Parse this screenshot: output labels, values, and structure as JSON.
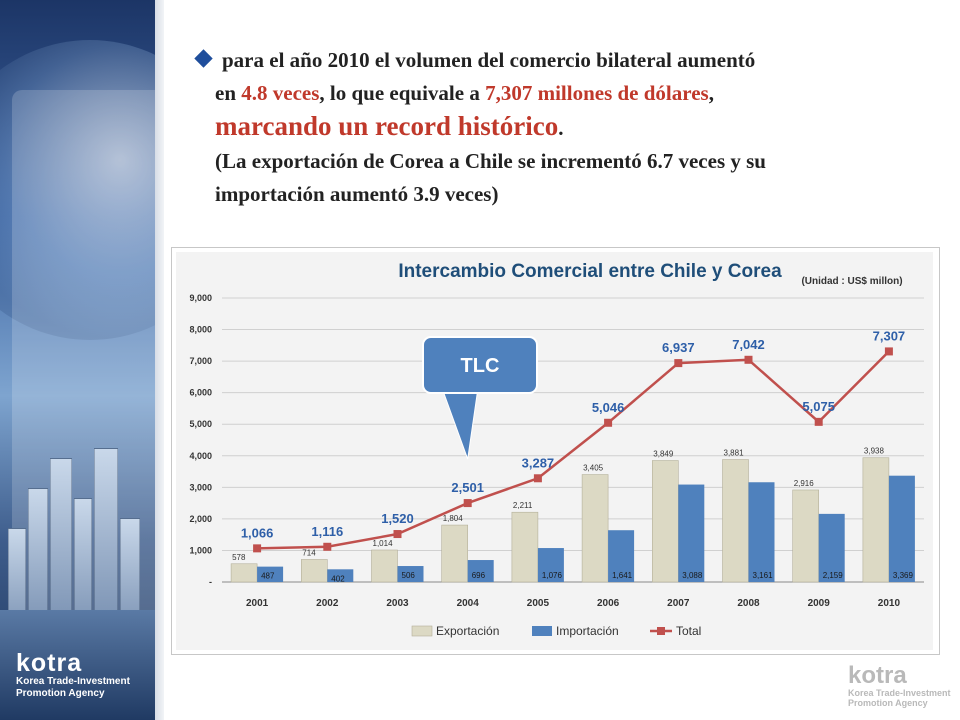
{
  "headline": {
    "line1": "para el año 2010 el volumen del comercio bilateral aumentó",
    "line2_pre": "en ",
    "line2_times": "4.8 veces",
    "line2_mid": ", lo que equivale a ",
    "line2_amount": "7,307 millones de dólares",
    "line2_post": ",",
    "line3": "marcando un record histórico",
    "line3_post": ".",
    "line4": "(La exportación de Corea a Chile se incrementó 6.7 veces y su",
    "line5": "importación  aumentó 3.9 veces)"
  },
  "logo": {
    "word": "kotra",
    "sub_line1": "Korea Trade-Investment",
    "sub_line2": "Promotion Agency"
  },
  "watermark": {
    "word": "kotra",
    "sub_line1": "Korea Trade-Investment",
    "sub_line2": "Promotion Agency"
  },
  "callout": {
    "label": "TLC"
  },
  "colors": {
    "bar_export": "#dcd9c4",
    "bar_import": "#4f81bd",
    "line_total": "#c0504d",
    "title": "#1f4e79",
    "total_label": "#2e5fa8",
    "callout": "#4f81bd"
  },
  "chart_data": {
    "type": "bar",
    "title": "Intercambio Comercial entre Chile y Corea",
    "unit_note": "(Unidad : US$ millon)",
    "categories": [
      "2001",
      "2002",
      "2003",
      "2004",
      "2005",
      "2006",
      "2007",
      "2008",
      "2009",
      "2010"
    ],
    "series": [
      {
        "name": "Exportación",
        "type": "bar",
        "values": [
          578,
          714,
          1014,
          1804,
          2211,
          3405,
          3849,
          3881,
          2916,
          3938
        ],
        "labels": [
          "578",
          "714",
          "1,014",
          "1,804",
          "2,211",
          "3,405",
          "3,849",
          "3,881",
          "2,916",
          "3,938"
        ]
      },
      {
        "name": "Importación",
        "type": "bar",
        "values": [
          487,
          402,
          506,
          696,
          1076,
          1641,
          3088,
          3161,
          2159,
          3369
        ],
        "labels": [
          "487",
          "402",
          "506",
          "696",
          "1,076",
          "1,641",
          "3,088",
          "3,161",
          "2,159",
          "3,369"
        ]
      },
      {
        "name": "Total",
        "type": "line",
        "values": [
          1066,
          1116,
          1520,
          2501,
          3287,
          5046,
          6937,
          7042,
          5075,
          7307
        ],
        "labels": [
          "1,066",
          "1,116",
          "1,520",
          "2,501",
          "3,287",
          "5,046",
          "6,937",
          "7,042",
          "5,075",
          "7,307"
        ]
      }
    ],
    "yticks": [
      "-",
      "1,000",
      "2,000",
      "3,000",
      "4,000",
      "5,000",
      "6,000",
      "7,000",
      "8,000",
      "9,000"
    ],
    "ylim": [
      0,
      9000
    ],
    "grid": true,
    "legend": "bottom"
  }
}
